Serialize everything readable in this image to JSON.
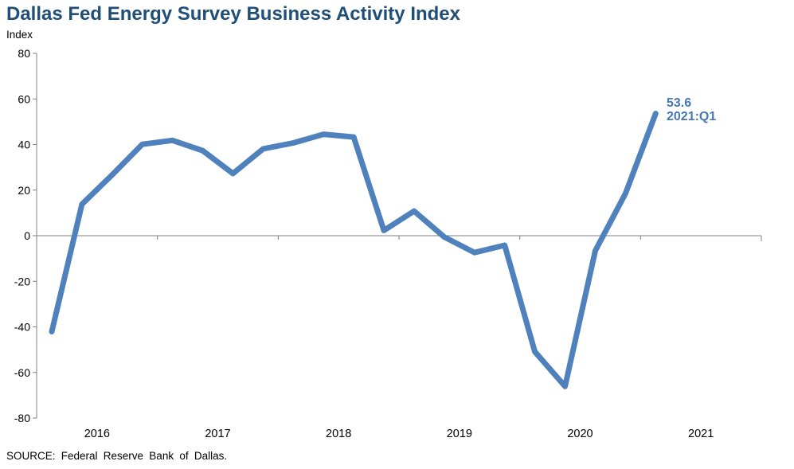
{
  "header": {
    "title": "Dallas Fed Energy Survey Business Activity Index",
    "axis_unit_label": "Index"
  },
  "annotation": {
    "value": "53.6",
    "period": "2021:Q1"
  },
  "source_note": "SOURCE:  Federal Reserve  Bank of Dallas.",
  "colors": {
    "title_text": "#1F4E79",
    "line": "#4F81BD",
    "annotation_text": "#4576B5",
    "axis": "#7F7F7F",
    "tick_label_text": "#000000"
  },
  "chart_data": {
    "type": "line",
    "title": "Dallas Fed Energy Survey Business Activity Index",
    "xlabel": "",
    "ylabel": "Index",
    "ylim": [
      -80,
      80
    ],
    "ytick_step": 20,
    "ytick_labels": [
      "80",
      "60",
      "40",
      "20",
      "0",
      "-20",
      "-40",
      "-60",
      "-80"
    ],
    "grid": false,
    "legend_position": "none",
    "x_year_labels": [
      "2016",
      "2017",
      "2018",
      "2019",
      "2020",
      "2021"
    ],
    "quarters_per_year": 4,
    "x_axis_total_quarters": 24,
    "x": [
      "2016:Q1",
      "2016:Q2",
      "2016:Q3",
      "2016:Q4",
      "2017:Q1",
      "2017:Q2",
      "2017:Q3",
      "2017:Q4",
      "2018:Q1",
      "2018:Q2",
      "2018:Q3",
      "2018:Q4",
      "2019:Q1",
      "2019:Q2",
      "2019:Q3",
      "2019:Q4",
      "2020:Q1",
      "2020:Q2",
      "2020:Q3",
      "2020:Q4",
      "2021:Q1"
    ],
    "values": [
      -42.1,
      13.8,
      26.7,
      40.1,
      41.8,
      37.3,
      27.3,
      38.1,
      40.7,
      44.5,
      43.3,
      2.3,
      10.8,
      -0.6,
      -7.4,
      -4.2,
      -50.9,
      -66.1,
      -6.6,
      18.5,
      53.6
    ],
    "last_point_annotation": {
      "value": 53.6,
      "label": "2021:Q1"
    }
  }
}
